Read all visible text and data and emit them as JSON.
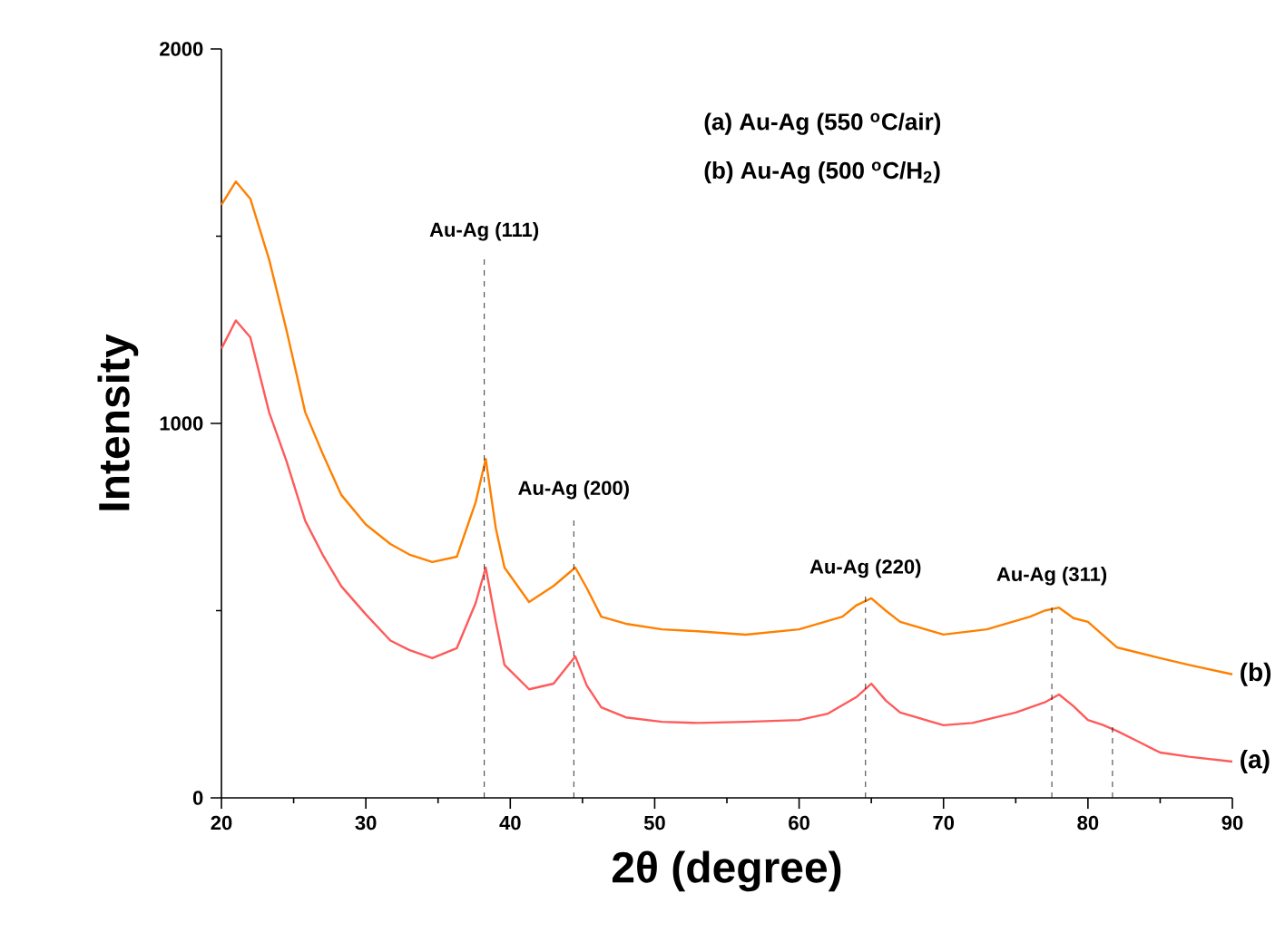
{
  "chart_data": {
    "type": "line",
    "xlabel": "2θ (degree)",
    "ylabel": "Intensity",
    "xlim": [
      20,
      90
    ],
    "ylim": [
      0,
      2000
    ],
    "xticks": [
      20,
      30,
      40,
      50,
      60,
      70,
      80,
      90
    ],
    "yticks": [
      0,
      1000,
      2000
    ],
    "grid": false,
    "series": [
      {
        "name": "(a)",
        "color": "#ff5a5a",
        "x": [
          20,
          21,
          22,
          23.3,
          24.5,
          25.8,
          27,
          28.3,
          30,
          31.7,
          33,
          34.6,
          36.3,
          37.6,
          38.3,
          39,
          39.6,
          41.3,
          43,
          44.5,
          45.3,
          46.3,
          48,
          50.5,
          53,
          56.3,
          60,
          62,
          64,
          65,
          66,
          67,
          70,
          72,
          75,
          77,
          78,
          79,
          80,
          81,
          82,
          83.5,
          85,
          87,
          90
        ],
        "values": [
          1200,
          1275,
          1230,
          1030,
          900,
          740,
          650,
          565,
          490,
          420,
          395,
          373,
          400,
          520,
          615,
          470,
          355,
          290,
          305,
          378,
          300,
          242,
          215,
          203,
          200,
          203,
          208,
          225,
          270,
          305,
          260,
          228,
          194,
          200,
          228,
          255,
          276,
          245,
          208,
          195,
          179,
          150,
          121,
          110,
          97
        ]
      },
      {
        "name": "(b)",
        "color": "#ff8000",
        "x": [
          20,
          21,
          22,
          23.3,
          24.5,
          25.8,
          27,
          28.3,
          30,
          31.7,
          33,
          34.6,
          36.3,
          37.6,
          38.3,
          39,
          39.6,
          41.3,
          43,
          44.5,
          45.3,
          46.3,
          48,
          50.5,
          53,
          56.3,
          60,
          63,
          64,
          65,
          66,
          67,
          70,
          73,
          76,
          77,
          78,
          79,
          80,
          82,
          85,
          87,
          90
        ],
        "values": [
          1584,
          1646,
          1600,
          1438,
          1250,
          1030,
          920,
          809,
          730,
          678,
          650,
          630,
          644,
          789,
          905,
          720,
          615,
          523,
          566,
          615,
          560,
          484,
          465,
          450,
          445,
          436,
          450,
          484,
          515,
          533,
          500,
          470,
          436,
          450,
          484,
          500,
          508,
          480,
          470,
          402,
          373,
          355,
          330
        ]
      }
    ],
    "ref_lines": [
      {
        "axis": "x",
        "value": 38.2,
        "label": "Au-Ag (111)",
        "line_style": "dashed",
        "color": "#000000"
      },
      {
        "axis": "x",
        "value": 44.4,
        "label": "Au-Ag (200)",
        "line_style": "dashed",
        "color": "#000000"
      },
      {
        "axis": "x",
        "value": 64.6,
        "label": "Au-Ag (220)",
        "line_style": "dashed",
        "color": "#000000"
      },
      {
        "axis": "x",
        "value": 77.5,
        "label": "Au-Ag (311)",
        "line_style": "dashed",
        "color": "#000000"
      },
      {
        "axis": "x",
        "value": 81.7,
        "line_style": "dashed",
        "color": "#000000"
      }
    ],
    "annotations": [
      "(a) Au-Ag (550 $^{o}$C/air)",
      "(b) Au-Ag (500 $^{o}$C/H$_{2}$)"
    ]
  }
}
